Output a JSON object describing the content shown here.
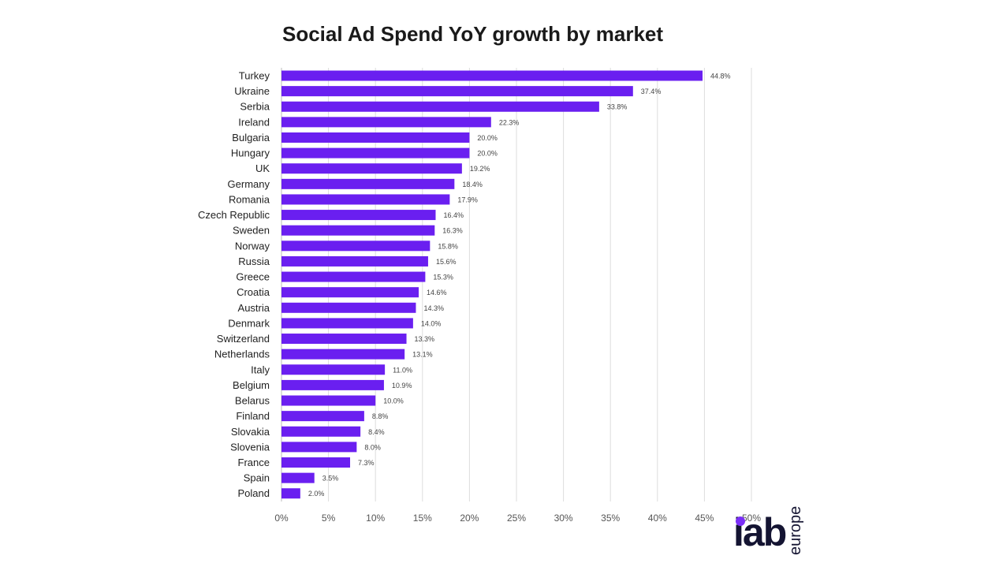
{
  "chart_data": {
    "type": "bar",
    "orientation": "horizontal",
    "title": "Social Ad Spend YoY growth by market",
    "categories": [
      "Turkey",
      "Ukraine",
      "Serbia",
      "Ireland",
      "Bulgaria",
      "Hungary",
      "UK",
      "Germany",
      "Romania",
      "Czech Republic",
      "Sweden",
      "Norway",
      "Russia",
      "Greece",
      "Croatia",
      "Austria",
      "Denmark",
      "Switzerland",
      "Netherlands",
      "Italy",
      "Belgium",
      "Belarus",
      "Finland",
      "Slovakia",
      "Slovenia",
      "France",
      "Spain",
      "Poland"
    ],
    "values": [
      44.8,
      37.4,
      33.8,
      22.3,
      20.0,
      20.0,
      19.2,
      18.4,
      17.9,
      16.4,
      16.3,
      15.8,
      15.6,
      15.3,
      14.6,
      14.3,
      14.0,
      13.3,
      13.1,
      11.0,
      10.9,
      10.0,
      8.8,
      8.4,
      8.0,
      7.3,
      3.5,
      2.0
    ],
    "value_labels": [
      "44.8%",
      "37.4%",
      "33.8%",
      "22.3%",
      "20.0%",
      "20.0%",
      "19.2%",
      "18.4%",
      "17.9%",
      "16.4%",
      "16.3%",
      "15.8%",
      "15.6%",
      "15.3%",
      "14.6%",
      "14.3%",
      "14.0%",
      "13.3%",
      "13.1%",
      "11.0%",
      "10.9%",
      "10.0%",
      "8.8%",
      "8.4%",
      "8.0%",
      "7.3%",
      "3.5%",
      "2.0%"
    ],
    "xlim": [
      0,
      50
    ],
    "xticks": [
      0,
      5,
      10,
      15,
      20,
      25,
      30,
      35,
      40,
      45,
      50
    ],
    "xtick_labels": [
      "0%",
      "5%",
      "10%",
      "15%",
      "20%",
      "25%",
      "30%",
      "35%",
      "40%",
      "45%",
      "50%"
    ],
    "grid": true,
    "legend": "none",
    "bar_color": "#6a1ff0",
    "grid_color": "#dddddd"
  },
  "logo": {
    "main": "iab",
    "sub": "europe",
    "accent_color": "#7b2ff7"
  }
}
